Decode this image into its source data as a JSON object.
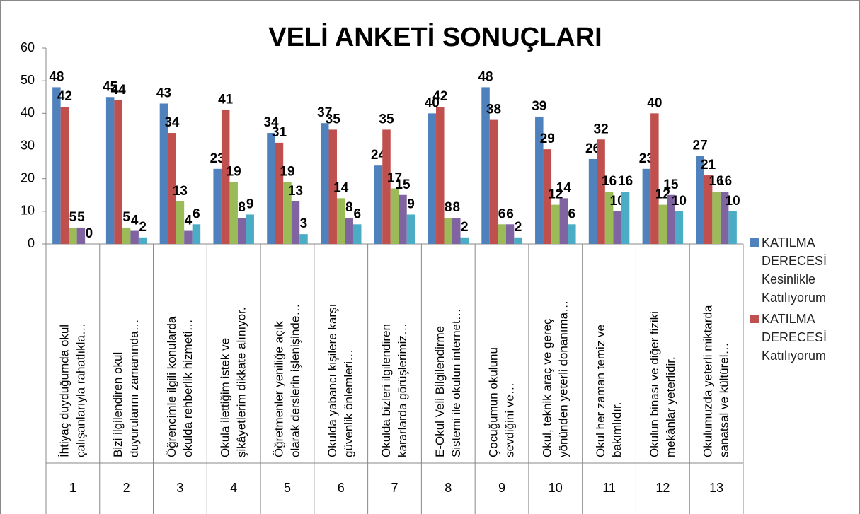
{
  "chart_data": {
    "type": "bar",
    "title": "VELİ ANKETİ SONUÇLARI",
    "categories": [
      [
        "İhtiyaç duyduğumda okul",
        "çalışanlarıyla rahatlıkla…"
      ],
      [
        "Bizi ilgilendiren okul",
        "duyurularını zamanında…"
      ],
      [
        "Öğrencimle ilgili konularda",
        "okulda rehberlik hizmeti…"
      ],
      [
        "Okula ilettiğim istek ve",
        "şikâyetlerim dikkate alınıyor."
      ],
      [
        "Öğretmenler yeniliğe açık",
        "olarak derslerin işlenişinde…"
      ],
      [
        "Okulda yabancı kişilere karşı",
        "güvenlik önlemleri…"
      ],
      [
        "Okulda bizleri ilgilendiren",
        "kararlarda görüşlerimiz…"
      ],
      [
        "E-Okul Veli Bilgilendirme",
        "Sistemi ile okulun internet…"
      ],
      [
        "Çocuğumun okulunu",
        "sevdiğini ve…"
      ],
      [
        "Okul, teknik araç ve gereç",
        "yönünden yeterli donanıma…"
      ],
      [
        "Okul her zaman temiz ve",
        "bakımlıdır."
      ],
      [
        "Okulun binası ve diğer fiziki",
        "mekânlar yeterlidir."
      ],
      [
        "Okulumuzda yeterli miktarda",
        "sanatsal ve kültürel…"
      ]
    ],
    "groups": [
      "1",
      "2",
      "3",
      "4",
      "5",
      "6",
      "7",
      "8",
      "9",
      "10",
      "11",
      "12",
      "13"
    ],
    "series": [
      {
        "name": "KATILMA DERECESİ Kesinlikle Katılıyorum",
        "color": "#4f81bd",
        "values": [
          48,
          45,
          43,
          23,
          34,
          37,
          24,
          40,
          48,
          39,
          26,
          23,
          27
        ]
      },
      {
        "name": "KATILMA DERECESİ Katılıyorum",
        "color": "#c0504d",
        "values": [
          42,
          44,
          34,
          41,
          31,
          35,
          35,
          42,
          38,
          29,
          32,
          40,
          21
        ]
      },
      {
        "color": "#9bbb59",
        "values": [
          5,
          5,
          13,
          19,
          19,
          14,
          17,
          8,
          6,
          12,
          16,
          12,
          16
        ]
      },
      {
        "color": "#8064a2",
        "values": [
          5,
          4,
          4,
          8,
          13,
          8,
          15,
          8,
          6,
          14,
          10,
          15,
          16
        ]
      },
      {
        "color": "#4bacc6",
        "values": [
          0,
          2,
          6,
          9,
          3,
          6,
          9,
          2,
          2,
          6,
          16,
          10,
          10
        ]
      }
    ],
    "ylim": [
      0,
      60
    ],
    "yticks": [
      0,
      10,
      20,
      30,
      40,
      50,
      60
    ],
    "grid": false,
    "legend": "right"
  }
}
